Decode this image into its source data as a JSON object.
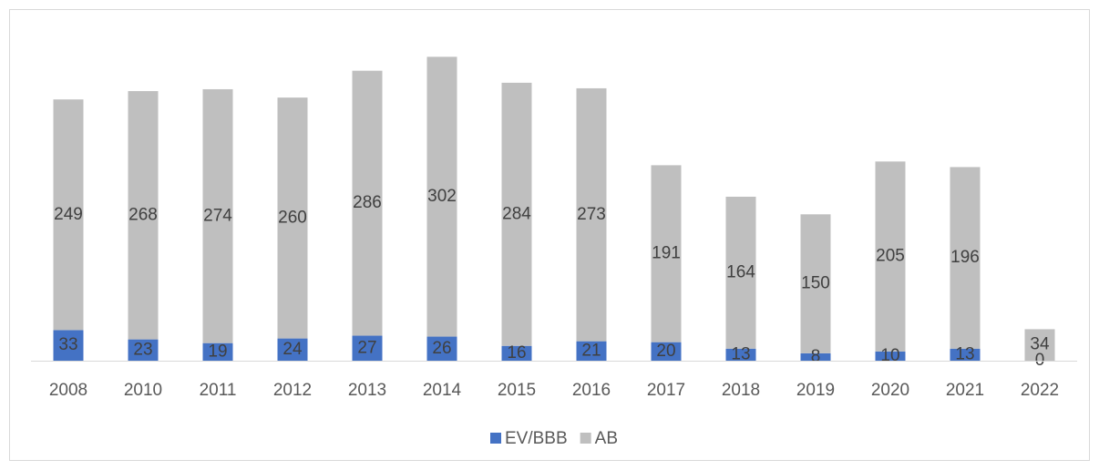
{
  "chart_data": {
    "type": "stacked_bar",
    "categories": [
      "2008",
      "2010",
      "2011",
      "2012",
      "2013",
      "2014",
      "2015",
      "2016",
      "2017",
      "2018",
      "2019",
      "2020",
      "2021",
      "2022"
    ],
    "series": [
      {
        "name": "EV/BBB",
        "color": "#4472c4",
        "values": [
          33,
          23,
          19,
          24,
          27,
          26,
          16,
          21,
          20,
          13,
          8,
          10,
          13,
          0
        ]
      },
      {
        "name": "AB",
        "color": "#bfbfbf",
        "values": [
          249,
          268,
          274,
          260,
          286,
          302,
          284,
          273,
          191,
          164,
          150,
          205,
          196,
          34
        ]
      }
    ],
    "ylim": [
      0,
      350
    ],
    "legend": "bottom"
  }
}
